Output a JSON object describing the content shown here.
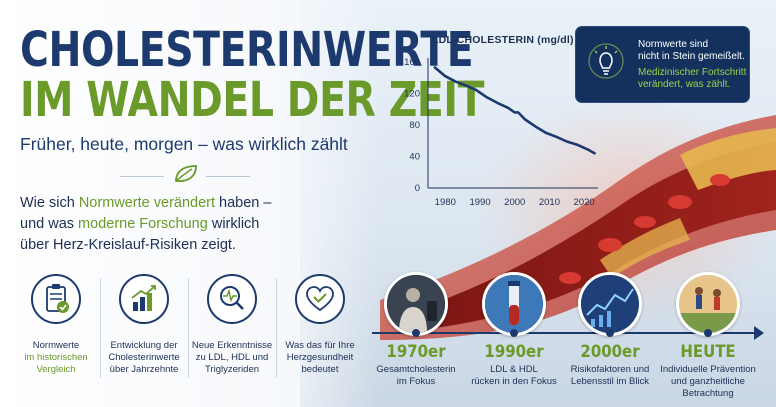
{
  "heading": {
    "line1": "CHOLESTERINWERTE",
    "line2": "IM WANDEL DER ZEIT",
    "subtitle": "Früher, heute, morgen – was wirklich zählt"
  },
  "lead": {
    "l1a": "Wie sich ",
    "l1b": "Normwerte verändert",
    "l1c": " haben –",
    "l2a": "und was ",
    "l2b": "moderne Forschung",
    "l2c": " wirklich",
    "l3": "über Herz-Kreislauf-Risiken zeigt."
  },
  "features": [
    {
      "icon": "clipboard-check-icon",
      "t1": "Normwerte",
      "t2": "im historischen",
      "t3": "Vergleich"
    },
    {
      "icon": "bar-chart-growth-icon",
      "t1": "Entwicklung der",
      "t2": "Cholesterinwerte",
      "t3": "über Jahrzehnte"
    },
    {
      "icon": "magnifier-pulse-icon",
      "t1": "Neue Erkenntnisse",
      "t2": "zu LDL, HDL und",
      "t3": "Triglyzeriden"
    },
    {
      "icon": "heart-check-icon",
      "t1": "Was das für Ihre",
      "t2": "Herzgesundheit",
      "t3": "bedeutet"
    }
  ],
  "callout": {
    "icon": "lightbulb-icon",
    "l1": "Normwerte sind",
    "l2": "nicht in Stein gemeißelt.",
    "l3": "Medizinischer Fortschritt",
    "l4": "verändert, was zählt."
  },
  "timeline": [
    {
      "year": "1970er",
      "d1": "Gesamtcholesterin",
      "d2": "im Fokus",
      "d3": ""
    },
    {
      "year": "1990er",
      "d1": "LDL & HDL",
      "d2": "rücken in den Fokus",
      "d3": ""
    },
    {
      "year": "2000er",
      "d1": "Risikofaktoren und",
      "d2": "Lebensstil im Blick",
      "d3": ""
    },
    {
      "year": "HEUTE",
      "d1": "Individuelle Prävention",
      "d2": "und ganzheitliche",
      "d3": "Betrachtung"
    }
  ],
  "colors": {
    "navy": "#1d3a6e",
    "green": "#6a9a2a",
    "callout_bg": "#14315e",
    "line": "#1d3a6e"
  },
  "chart_data": {
    "type": "line",
    "title": "LDL-CHOLESTERIN (mg/dl)",
    "xlabel": "",
    "ylabel": "",
    "xlim": [
      1975,
      2024
    ],
    "ylim": [
      0,
      160
    ],
    "xticks": [
      1980,
      1990,
      2000,
      2010,
      2020
    ],
    "yticks": [
      0,
      40,
      80,
      120,
      160
    ],
    "grid": false,
    "series": [
      {
        "x": [
          1977,
          1980,
          1983,
          1986,
          1989,
          1992,
          1995,
          1998,
          2000,
          2001,
          2003,
          2006,
          2009,
          2012,
          2015,
          2018,
          2021,
          2023
        ],
        "y": [
          153,
          142,
          135,
          130,
          124,
          115,
          108,
          102,
          96,
          96,
          87,
          78,
          70,
          65,
          59,
          55,
          49,
          44
        ]
      }
    ]
  }
}
